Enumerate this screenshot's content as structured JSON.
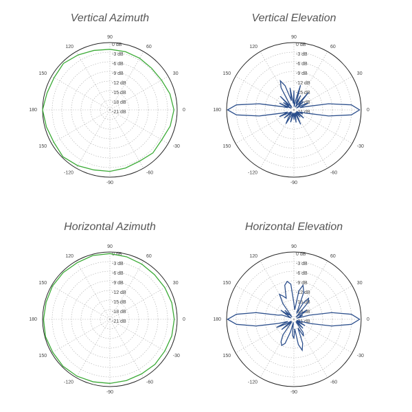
{
  "chart_data": [
    {
      "type": "polar",
      "title": "Vertical Azimuth",
      "color": "#3aaa35",
      "grid": true,
      "theta": [
        -180,
        -165,
        -150,
        -135,
        -120,
        -105,
        -90,
        -75,
        -60,
        -45,
        -30,
        -15,
        0,
        15,
        30,
        45,
        60,
        75,
        90,
        105,
        120,
        135,
        150,
        165
      ],
      "values": [
        0,
        -0.5,
        -0.8,
        -0.3,
        -0.9,
        -1.6,
        -1.8,
        -2.2,
        -2.5,
        -2.0,
        -2.3,
        -1.5,
        -1.0,
        -1.6,
        -2.4,
        -2.6,
        -2.4,
        -2.2,
        -2.1,
        -1.8,
        -1.2,
        -0.5,
        -0.9,
        -0.7
      ],
      "rlim": [
        -21,
        0
      ],
      "rticks": [
        {
          "value": 0,
          "label": "0 dB"
        },
        {
          "value": -3,
          "label": "-3 dB"
        },
        {
          "value": -6,
          "label": "-6 dB"
        },
        {
          "value": -9,
          "label": "-9 dB"
        },
        {
          "value": -12,
          "label": "-12 dB"
        },
        {
          "value": -15,
          "label": "-15 dB"
        },
        {
          "value": -18,
          "label": "-18 dB"
        },
        {
          "value": -21,
          "label": "-21 dB"
        }
      ],
      "thetaticks": [
        0,
        30,
        60,
        90,
        120,
        150,
        180,
        {
          "value": -150,
          "label": "150"
        },
        -120,
        -90,
        -60,
        -30
      ]
    },
    {
      "type": "polar",
      "title": "Vertical Elevation",
      "color": "#2c4f8c",
      "grid": true,
      "theta": [
        -180,
        -175,
        -170,
        -165,
        -160,
        -155,
        -150,
        -145,
        -140,
        -135,
        -130,
        -125,
        -120,
        -115,
        -110,
        -105,
        -100,
        -95,
        -90,
        -85,
        -80,
        -75,
        -70,
        -65,
        -60,
        -55,
        -50,
        -45,
        -40,
        -35,
        -30,
        -25,
        -20,
        -15,
        -10,
        -5,
        0,
        5,
        10,
        15,
        20,
        25,
        30,
        35,
        40,
        45,
        50,
        55,
        60,
        65,
        70,
        75,
        80,
        85,
        90,
        95,
        100,
        105,
        110,
        115,
        120,
        125,
        130,
        135,
        140,
        145,
        150,
        155,
        160,
        165,
        170,
        175
      ],
      "values": [
        -0.3,
        -3,
        -10,
        -17,
        -19,
        -16,
        -19,
        -20,
        -17,
        -19,
        -20,
        -18,
        -16,
        -19,
        -20,
        -17,
        -19,
        -20,
        -18,
        -20,
        -17,
        -19,
        -20,
        -16,
        -19,
        -20,
        -18,
        -20,
        -17,
        -19,
        -20,
        -18,
        -19,
        -17,
        -10,
        -3,
        -0.5,
        -3,
        -10,
        -17,
        -19,
        -16,
        -18,
        -20,
        -17,
        -19,
        -14,
        -19,
        -20,
        -16,
        -19,
        -13,
        -18,
        -20,
        -15,
        -19,
        -14,
        -18,
        -13,
        -11,
        -13,
        -18,
        -20,
        -15,
        -19,
        -17,
        -20,
        -16,
        -19,
        -17,
        -10,
        -3
      ],
      "rlim": [
        -21,
        0
      ],
      "rticks": [
        {
          "value": 0,
          "label": "0 dB"
        },
        {
          "value": -3,
          "label": "-3 dB"
        },
        {
          "value": -6,
          "label": "-6 dB"
        },
        {
          "value": -9,
          "label": "-9 dB"
        },
        {
          "value": -12,
          "label": "-12 dB"
        },
        {
          "value": -15,
          "label": "-15 dB"
        },
        {
          "value": -18,
          "label": "-18 dB"
        },
        {
          "value": -21,
          "label": "-21 dB"
        }
      ],
      "thetaticks": [
        0,
        30,
        60,
        90,
        120,
        150,
        180,
        {
          "value": -150,
          "label": "150"
        },
        -120,
        -90,
        -60,
        -30
      ]
    },
    {
      "type": "polar",
      "title": "Horizontal Azimuth",
      "color": "#3aaa35",
      "grid": true,
      "theta": [
        -180,
        -165,
        -150,
        -135,
        -120,
        -105,
        -90,
        -75,
        -60,
        -45,
        -30,
        -15,
        0,
        15,
        30,
        45,
        60,
        75,
        90,
        105,
        120,
        135,
        150,
        165
      ],
      "values": [
        -0.3,
        -0.2,
        -0.4,
        -0.3,
        -0.5,
        -0.8,
        -1.0,
        -1.2,
        -1.3,
        -1.1,
        -1.2,
        -1.0,
        -0.9,
        -1.0,
        -1.2,
        -1.3,
        -1.1,
        -0.8,
        -0.5,
        -0.4,
        -0.6,
        -0.4,
        -0.3,
        -0.4
      ],
      "rlim": [
        -21,
        0
      ],
      "rticks": [
        {
          "value": 0,
          "label": "0 dB"
        },
        {
          "value": -3,
          "label": "-3 dB"
        },
        {
          "value": -6,
          "label": "-6 dB"
        },
        {
          "value": -9,
          "label": "-9 dB"
        },
        {
          "value": -12,
          "label": "-12 dB"
        },
        {
          "value": -15,
          "label": "-15 dB"
        },
        {
          "value": -18,
          "label": "-18 dB"
        },
        {
          "value": -21,
          "label": "-21 dB"
        }
      ],
      "thetaticks": [
        0,
        30,
        60,
        90,
        120,
        150,
        180,
        {
          "value": -150,
          "label": "150"
        },
        -120,
        -90,
        -60,
        -30
      ]
    },
    {
      "type": "polar",
      "title": "Horizontal Elevation",
      "color": "#2c4f8c",
      "grid": true,
      "theta": [
        -180,
        -175,
        -170,
        -165,
        -160,
        -155,
        -150,
        -145,
        -140,
        -135,
        -130,
        -125,
        -120,
        -115,
        -110,
        -105,
        -100,
        -95,
        -90,
        -85,
        -80,
        -75,
        -70,
        -65,
        -60,
        -55,
        -50,
        -45,
        -40,
        -35,
        -30,
        -25,
        -20,
        -15,
        -10,
        -5,
        0,
        5,
        10,
        15,
        20,
        25,
        30,
        35,
        40,
        45,
        50,
        55,
        60,
        65,
        70,
        75,
        80,
        85,
        90,
        95,
        100,
        105,
        110,
        115,
        120,
        125,
        130,
        135,
        140,
        145,
        150,
        155,
        160,
        165,
        170,
        175
      ],
      "values": [
        -0.3,
        -3,
        -9,
        -16,
        -19,
        -15,
        -18,
        -20,
        -16,
        -19,
        -20,
        -15,
        -13,
        -12,
        -13,
        -17,
        -20,
        -16,
        -15,
        -18,
        -13,
        -11,
        -13,
        -18,
        -15,
        -16,
        -20,
        -17,
        -19,
        -20,
        -17,
        -19,
        -20,
        -16,
        -9,
        -3,
        -0.5,
        -3,
        -9,
        -16,
        -20,
        -18,
        -19,
        -16,
        -18,
        -20,
        -14,
        -13,
        -15,
        -19,
        -12,
        -10,
        -12,
        -18,
        -16,
        -10,
        -9,
        -10,
        -14,
        -13,
        -12,
        -15,
        -20,
        -17,
        -19,
        -16,
        -19,
        -20,
        -17,
        -16,
        -9,
        -3
      ],
      "rlim": [
        -21,
        0
      ],
      "rticks": [
        {
          "value": 0,
          "label": "0 dB"
        },
        {
          "value": -3,
          "label": "-3 dB"
        },
        {
          "value": -6,
          "label": "-6 dB"
        },
        {
          "value": -9,
          "label": "-9 dB"
        },
        {
          "value": -12,
          "label": "-12 dB"
        },
        {
          "value": -15,
          "label": "-15 dB"
        },
        {
          "value": -18,
          "label": "-18 dB"
        },
        {
          "value": -21,
          "label": "-21 dB"
        }
      ],
      "thetaticks": [
        0,
        30,
        60,
        90,
        120,
        150,
        180,
        {
          "value": -150,
          "label": "150"
        },
        -120,
        -90,
        -60,
        -30
      ]
    }
  ]
}
